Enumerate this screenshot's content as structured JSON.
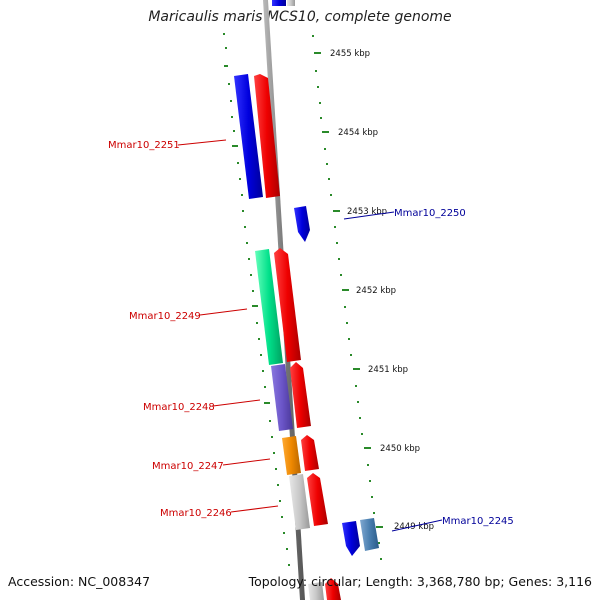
{
  "title": "Maricaulis maris MCS10, complete genome",
  "footer": {
    "accession": "Accession: NC_008347",
    "topology": "Topology: circular; Length: 3,368,780 bp; Genes: 3,116"
  },
  "kbp_ticks": [
    "2455 kbp",
    "2454 kbp",
    "2453 kbp",
    "2452 kbp",
    "2451 kbp",
    "2450 kbp",
    "2449 kbp"
  ],
  "genes": [
    {
      "name": "Mmar10_2251",
      "strand": "left",
      "label_color": "#cc0000",
      "feature_color": "#0000dd"
    },
    {
      "name": "Mmar10_2250",
      "strand": "right",
      "label_color": "#000099",
      "feature_color": "#0000ee"
    },
    {
      "name": "Mmar10_2249",
      "strand": "left",
      "label_color": "#cc0000",
      "feature_color": "#00e08a"
    },
    {
      "name": "Mmar10_2248",
      "strand": "left",
      "label_color": "#cc0000",
      "feature_color": "#6b55c8"
    },
    {
      "name": "Mmar10_2247",
      "strand": "left",
      "label_color": "#cc0000",
      "feature_color": "#ee8800"
    },
    {
      "name": "Mmar10_2246",
      "strand": "left",
      "label_color": "#cc0000",
      "feature_color": "#c8c8c8"
    },
    {
      "name": "Mmar10_2245",
      "strand": "right",
      "label_color": "#000099",
      "feature_color": "#0000dd"
    }
  ],
  "colors": {
    "backbone": "#888888",
    "tick": "#2a8a2a",
    "cds": "#ee0000",
    "steelblue_feature": "#4a7fb0"
  }
}
